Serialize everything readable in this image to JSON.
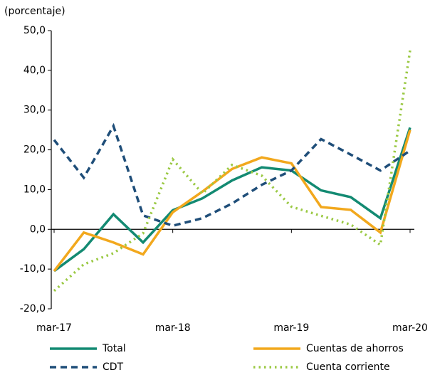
{
  "chart_data": {
    "type": "line",
    "y_axis_label": "(porcentaje)",
    "categories": [
      "mar-17",
      null,
      null,
      null,
      "mar-18",
      null,
      null,
      null,
      "mar-19",
      null,
      null,
      null,
      "mar-20"
    ],
    "ylim": [
      -20,
      50
    ],
    "yticks": [
      {
        "value": -20,
        "label": "-20,0"
      },
      {
        "value": -10,
        "label": "-10,0"
      },
      {
        "value": 0,
        "label": "0,0"
      },
      {
        "value": 10,
        "label": "10,0"
      },
      {
        "value": 20,
        "label": "20,0"
      },
      {
        "value": 30,
        "label": "30,0"
      },
      {
        "value": 40,
        "label": "40,0"
      },
      {
        "value": 50,
        "label": "50,0"
      }
    ],
    "series": [
      {
        "name": "Total",
        "color": "#138a72",
        "dash": "solid",
        "values": [
          -10.5,
          -5.0,
          3.8,
          -3.3,
          4.8,
          7.8,
          12.3,
          15.6,
          14.8,
          9.8,
          8.1,
          2.8,
          25.6
        ]
      },
      {
        "name": "Cuentas de ahorros",
        "color": "#f2a81d",
        "dash": "solid",
        "values": [
          -10.5,
          -0.8,
          -3.3,
          -6.3,
          4.3,
          9.5,
          15.2,
          18.1,
          16.6,
          5.6,
          4.9,
          -0.8,
          25.0
        ]
      },
      {
        "name": "CDT",
        "color": "#1f4e79",
        "dash": "dashed",
        "values": [
          22.5,
          13.0,
          26.0,
          3.5,
          0.9,
          2.8,
          6.5,
          11.2,
          14.8,
          22.7,
          18.8,
          14.8,
          19.8
        ]
      },
      {
        "name": "Cuenta corriente",
        "color": "#9bc944",
        "dash": "dotted",
        "values": [
          -15.5,
          -8.8,
          -6.0,
          -1.0,
          17.6,
          9.0,
          16.2,
          13.5,
          5.7,
          3.4,
          1.2,
          -3.9,
          45.0
        ]
      }
    ]
  }
}
